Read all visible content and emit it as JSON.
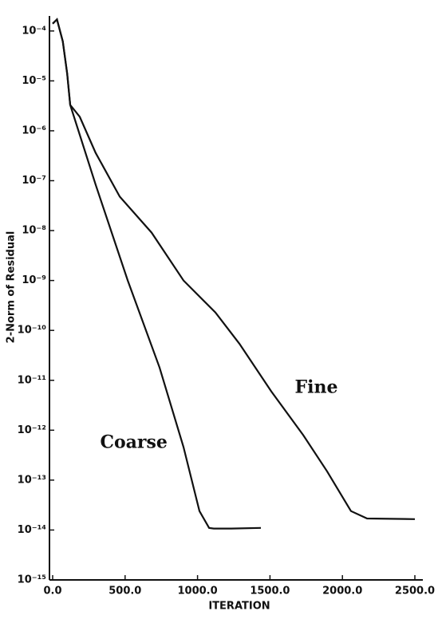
{
  "chart_data": {
    "type": "line",
    "log_y": true,
    "xlabel": "ITERATION",
    "ylabel": "2-Norm of Residual",
    "xlim": [
      0,
      2500
    ],
    "xticks": [
      {
        "value": 0,
        "label": "0.0"
      },
      {
        "value": 500,
        "label": "500.0"
      },
      {
        "value": 1000,
        "label": "1000.0"
      },
      {
        "value": 1500,
        "label": "1500.0"
      },
      {
        "value": 2000,
        "label": "2000.0"
      },
      {
        "value": 2500,
        "label": "2500.0"
      }
    ],
    "ylim": [
      1e-15,
      0.0002
    ],
    "yticks": [
      {
        "value": 1e-15,
        "label": "10⁻¹⁵"
      },
      {
        "value": 1e-14,
        "label": "10⁻¹⁴"
      },
      {
        "value": 1e-13,
        "label": "10⁻¹³"
      },
      {
        "value": 1e-12,
        "label": "10⁻¹²"
      },
      {
        "value": 1e-11,
        "label": "10⁻¹¹"
      },
      {
        "value": 1e-10,
        "label": "10⁻¹⁰"
      },
      {
        "value": 1e-09,
        "label": "10⁻⁹"
      },
      {
        "value": 1e-08,
        "label": "10⁻⁸"
      },
      {
        "value": 1e-07,
        "label": "10⁻⁷"
      },
      {
        "value": 1e-06,
        "label": "10⁻⁶"
      },
      {
        "value": 1e-05,
        "label": "10⁻⁵"
      },
      {
        "value": 0.0001,
        "label": "10⁻⁴"
      }
    ],
    "series": [
      {
        "name": "Coarse",
        "color": "#111111",
        "x": [
          0,
          30,
          70,
          100,
          121,
          297,
          518,
          738,
          903,
          1013,
          1080,
          1112,
          1233,
          1437
        ],
        "values": [
          0.00014,
          0.00017,
          6.2e-05,
          1.4e-05,
          3.3e-06,
          8.3e-08,
          1e-09,
          1.8e-11,
          4.6e-13,
          2.4e-14,
          1.1e-14,
          1.07e-14,
          1.07e-14,
          1.1e-14
        ]
      },
      {
        "name": "Fine",
        "color": "#111111",
        "x": [
          0,
          30,
          70,
          100,
          121,
          187,
          297,
          463,
          683,
          903,
          1123,
          1289,
          1509,
          1729,
          1894,
          2059,
          2170,
          2500
        ],
        "values": [
          0.00014,
          0.00017,
          6.2e-05,
          1.4e-05,
          3.3e-06,
          1.9e-06,
          3.6e-07,
          4.8e-08,
          9.1e-09,
          1e-09,
          2.3e-10,
          5.4e-11,
          6e-12,
          8e-13,
          1.5e-13,
          2.4e-14,
          1.7e-14,
          1.65e-14
        ]
      }
    ],
    "annotations": [
      {
        "text": "Fine",
        "x": 1820,
        "y": 7e-12
      },
      {
        "text": "Coarse",
        "x": 560,
        "y": 5.5e-13
      }
    ]
  }
}
